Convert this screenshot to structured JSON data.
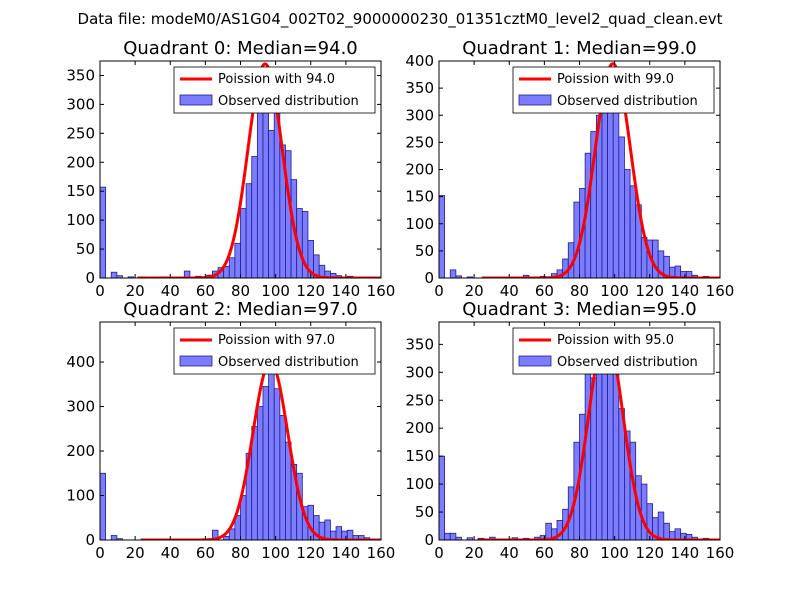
{
  "page_title": "Data file: modeM0/AS1G04_002T02_9000000230_01351cztM0_level2_quad_clean.evt",
  "colors": {
    "fit_line": "#ff0000",
    "bar_fill": "#7c7cff",
    "bar_edge": "#1f1f8f",
    "axes": "#000000"
  },
  "chart_data": [
    {
      "type": "bar",
      "title": "Quadrant 0: Median=94.0",
      "xlim": [
        0,
        160
      ],
      "ylim": [
        0,
        375
      ],
      "xticks": [
        0,
        20,
        40,
        60,
        80,
        100,
        120,
        140,
        160
      ],
      "yticks": [
        0,
        50,
        100,
        150,
        200,
        250,
        300,
        350
      ],
      "legend": {
        "placement": "top-right",
        "line_label": "Poission with 94.0",
        "bar_label": "Observed distribution"
      },
      "poisson_mean": 94.0,
      "poisson_peak": 370,
      "bin_width": 3.2,
      "bins": [
        {
          "x": 0,
          "count": 157
        },
        {
          "x": 6.4,
          "count": 10
        },
        {
          "x": 9.6,
          "count": 4
        },
        {
          "x": 16,
          "count": 2
        },
        {
          "x": 22.4,
          "count": 2
        },
        {
          "x": 35.2,
          "count": 2
        },
        {
          "x": 48,
          "count": 12
        },
        {
          "x": 54.4,
          "count": 3
        },
        {
          "x": 60.8,
          "count": 5
        },
        {
          "x": 64,
          "count": 12
        },
        {
          "x": 67.2,
          "count": 18
        },
        {
          "x": 70.4,
          "count": 20
        },
        {
          "x": 73.6,
          "count": 35
        },
        {
          "x": 76.8,
          "count": 60
        },
        {
          "x": 80,
          "count": 120
        },
        {
          "x": 83.2,
          "count": 163
        },
        {
          "x": 86.4,
          "count": 210
        },
        {
          "x": 89.6,
          "count": 295
        },
        {
          "x": 92.8,
          "count": 335
        },
        {
          "x": 96,
          "count": 255
        },
        {
          "x": 99.2,
          "count": 295
        },
        {
          "x": 102.4,
          "count": 230
        },
        {
          "x": 105.6,
          "count": 220
        },
        {
          "x": 108.8,
          "count": 170
        },
        {
          "x": 112,
          "count": 120
        },
        {
          "x": 115.2,
          "count": 115
        },
        {
          "x": 118.4,
          "count": 65
        },
        {
          "x": 121.6,
          "count": 40
        },
        {
          "x": 124.8,
          "count": 22
        },
        {
          "x": 128,
          "count": 12
        },
        {
          "x": 131.2,
          "count": 8
        },
        {
          "x": 134.4,
          "count": 4
        },
        {
          "x": 140.8,
          "count": 3
        }
      ]
    },
    {
      "type": "bar",
      "title": "Quadrant 1: Median=99.0",
      "xlim": [
        0,
        160
      ],
      "ylim": [
        0,
        400
      ],
      "xticks": [
        0,
        20,
        40,
        60,
        80,
        100,
        120,
        140,
        160
      ],
      "yticks": [
        0,
        50,
        100,
        150,
        200,
        250,
        300,
        350,
        400
      ],
      "legend": {
        "placement": "top-right",
        "line_label": "Poission with 99.0",
        "bar_label": "Observed distribution"
      },
      "poisson_mean": 99.0,
      "poisson_peak": 395,
      "bin_width": 3.2,
      "bins": [
        {
          "x": 0,
          "count": 152
        },
        {
          "x": 6.4,
          "count": 15
        },
        {
          "x": 9.6,
          "count": 4
        },
        {
          "x": 16,
          "count": 2
        },
        {
          "x": 48,
          "count": 5
        },
        {
          "x": 57.6,
          "count": 3
        },
        {
          "x": 64,
          "count": 8
        },
        {
          "x": 67.2,
          "count": 15
        },
        {
          "x": 70.4,
          "count": 35
        },
        {
          "x": 73.6,
          "count": 65
        },
        {
          "x": 76.8,
          "count": 140
        },
        {
          "x": 80,
          "count": 165
        },
        {
          "x": 83.2,
          "count": 230
        },
        {
          "x": 86.4,
          "count": 270
        },
        {
          "x": 89.6,
          "count": 300
        },
        {
          "x": 92.8,
          "count": 350
        },
        {
          "x": 96,
          "count": 305
        },
        {
          "x": 99.2,
          "count": 310
        },
        {
          "x": 102.4,
          "count": 260
        },
        {
          "x": 105.6,
          "count": 200
        },
        {
          "x": 108.8,
          "count": 170
        },
        {
          "x": 112,
          "count": 135
        },
        {
          "x": 115.2,
          "count": 75
        },
        {
          "x": 118.4,
          "count": 70
        },
        {
          "x": 121.6,
          "count": 70
        },
        {
          "x": 124.8,
          "count": 50
        },
        {
          "x": 128,
          "count": 40
        },
        {
          "x": 131.2,
          "count": 20
        },
        {
          "x": 134.4,
          "count": 22
        },
        {
          "x": 137.6,
          "count": 12
        },
        {
          "x": 140.8,
          "count": 12
        },
        {
          "x": 144,
          "count": 5
        },
        {
          "x": 150.4,
          "count": 3
        }
      ]
    },
    {
      "type": "bar",
      "title": "Quadrant 2: Median=97.0",
      "xlim": [
        0,
        160
      ],
      "ylim": [
        0,
        490
      ],
      "xticks": [
        0,
        20,
        40,
        60,
        80,
        100,
        120,
        140,
        160
      ],
      "yticks": [
        0,
        100,
        200,
        300,
        400
      ],
      "legend": {
        "placement": "top-right",
        "line_label": "Poission with 97.0",
        "bar_label": "Observed distribution"
      },
      "poisson_mean": 97.0,
      "poisson_peak": 400,
      "bin_width": 3.2,
      "bins": [
        {
          "x": 0,
          "count": 150
        },
        {
          "x": 6.4,
          "count": 10
        },
        {
          "x": 9.6,
          "count": 3
        },
        {
          "x": 35.2,
          "count": 2
        },
        {
          "x": 64,
          "count": 22
        },
        {
          "x": 70.4,
          "count": 8
        },
        {
          "x": 73.6,
          "count": 25
        },
        {
          "x": 76.8,
          "count": 55
        },
        {
          "x": 80,
          "count": 100
        },
        {
          "x": 83.2,
          "count": 195
        },
        {
          "x": 86.4,
          "count": 255
        },
        {
          "x": 89.6,
          "count": 300
        },
        {
          "x": 92.8,
          "count": 345
        },
        {
          "x": 96,
          "count": 390
        },
        {
          "x": 99.2,
          "count": 340
        },
        {
          "x": 102.4,
          "count": 280
        },
        {
          "x": 105.6,
          "count": 220
        },
        {
          "x": 108.8,
          "count": 170
        },
        {
          "x": 112,
          "count": 150
        },
        {
          "x": 115.2,
          "count": 75
        },
        {
          "x": 118.4,
          "count": 78
        },
        {
          "x": 121.6,
          "count": 55
        },
        {
          "x": 124.8,
          "count": 40
        },
        {
          "x": 128,
          "count": 45
        },
        {
          "x": 131.2,
          "count": 20
        },
        {
          "x": 134.4,
          "count": 30
        },
        {
          "x": 137.6,
          "count": 20
        },
        {
          "x": 140.8,
          "count": 22
        },
        {
          "x": 144,
          "count": 10
        },
        {
          "x": 147.2,
          "count": 10
        },
        {
          "x": 150.4,
          "count": 5
        }
      ]
    },
    {
      "type": "bar",
      "title": "Quadrant 3: Median=95.0",
      "xlim": [
        0,
        160
      ],
      "ylim": [
        0,
        390
      ],
      "xticks": [
        0,
        20,
        40,
        60,
        80,
        100,
        120,
        140,
        160
      ],
      "yticks": [
        0,
        50,
        100,
        150,
        200,
        250,
        300,
        350
      ],
      "legend": {
        "placement": "top-right",
        "line_label": "Poission with 95.0",
        "bar_label": "Observed distribution"
      },
      "poisson_mean": 95.0,
      "poisson_peak": 370,
      "bin_width": 3.2,
      "bins": [
        {
          "x": 0,
          "count": 150
        },
        {
          "x": 3.2,
          "count": 12
        },
        {
          "x": 6.4,
          "count": 12
        },
        {
          "x": 9.6,
          "count": 5
        },
        {
          "x": 16,
          "count": 4
        },
        {
          "x": 22.4,
          "count": 3
        },
        {
          "x": 28.8,
          "count": 5
        },
        {
          "x": 41.6,
          "count": 4
        },
        {
          "x": 48,
          "count": 3
        },
        {
          "x": 54.4,
          "count": 5
        },
        {
          "x": 57.6,
          "count": 8
        },
        {
          "x": 60.8,
          "count": 30
        },
        {
          "x": 64,
          "count": 20
        },
        {
          "x": 67.2,
          "count": 35
        },
        {
          "x": 70.4,
          "count": 55
        },
        {
          "x": 73.6,
          "count": 95
        },
        {
          "x": 76.8,
          "count": 175
        },
        {
          "x": 80,
          "count": 225
        },
        {
          "x": 83.2,
          "count": 315
        },
        {
          "x": 86.4,
          "count": 290
        },
        {
          "x": 89.6,
          "count": 340
        },
        {
          "x": 92.8,
          "count": 330
        },
        {
          "x": 96,
          "count": 300
        },
        {
          "x": 99.2,
          "count": 320
        },
        {
          "x": 102.4,
          "count": 235
        },
        {
          "x": 105.6,
          "count": 195
        },
        {
          "x": 108.8,
          "count": 175
        },
        {
          "x": 112,
          "count": 115
        },
        {
          "x": 115.2,
          "count": 100
        },
        {
          "x": 118.4,
          "count": 65
        },
        {
          "x": 121.6,
          "count": 40
        },
        {
          "x": 124.8,
          "count": 50
        },
        {
          "x": 128,
          "count": 30
        },
        {
          "x": 131.2,
          "count": 15
        },
        {
          "x": 134.4,
          "count": 20
        },
        {
          "x": 137.6,
          "count": 12
        },
        {
          "x": 140.8,
          "count": 10
        },
        {
          "x": 144,
          "count": 5
        },
        {
          "x": 150.4,
          "count": 3
        }
      ]
    }
  ]
}
